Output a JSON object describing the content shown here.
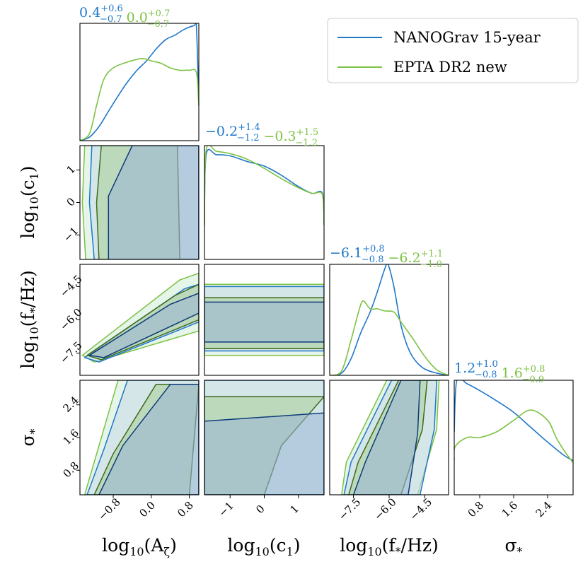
{
  "chart_data": {
    "type": "corner",
    "parameters": [
      "log10(A_zeta)",
      "log10(c1)",
      "log10(f_*/Hz)",
      "sigma_*"
    ],
    "axis_labels": {
      "p0": {
        "base": "log",
        "sub": "10",
        "arg": "(A",
        "argsub": "ζ",
        "close": ")"
      },
      "p1": {
        "base": "log",
        "sub": "10",
        "arg": "(c",
        "argsub": "1",
        "close": ")"
      },
      "p2": {
        "base": "log",
        "sub": "10",
        "arg": "(f",
        "argsub": "*",
        "close": "/Hz)"
      },
      "p3": {
        "base": "σ",
        "sub": "*",
        "arg": "",
        "argsub": "",
        "close": ""
      }
    },
    "ranges": {
      "p0": [
        -1.5,
        1.0
      ],
      "p1": [
        -1.75,
        1.75
      ],
      "p2": [
        -8.5,
        -3.5
      ],
      "p3": [
        0.2,
        3.0
      ]
    },
    "ticks": {
      "p0": [
        {
          "v": -0.8,
          "label": "−0.8"
        },
        {
          "v": 0.0,
          "label": "0.0"
        },
        {
          "v": 0.8,
          "label": "0.8"
        }
      ],
      "p1": [
        {
          "v": -1,
          "label": "−1"
        },
        {
          "v": 0,
          "label": "0"
        },
        {
          "v": 1,
          "label": "1"
        }
      ],
      "p2": [
        {
          "v": -7.5,
          "label": "−7.5"
        },
        {
          "v": -6.0,
          "label": "−6.0"
        },
        {
          "v": -4.5,
          "label": "−4.5"
        }
      ],
      "p3": [
        {
          "v": 0.8,
          "label": "0.8"
        },
        {
          "v": 1.6,
          "label": "1.6"
        },
        {
          "v": 2.4,
          "label": "2.4"
        }
      ]
    },
    "series": [
      {
        "name": "NANOGrav 15-year",
        "color": "#1f77c9",
        "fill_inner": "#9ab5d6",
        "fill_outer": "#c6d8ea",
        "stats": [
          {
            "median": "0.4",
            "plus": "+0.6",
            "minus": "−0.7"
          },
          {
            "median": "−0.2",
            "plus": "+1.4",
            "minus": "−1.2"
          },
          {
            "median": "−6.1",
            "plus": "+0.8",
            "minus": "−0.8"
          },
          {
            "median": "1.2",
            "plus": "+1.0",
            "minus": "−0.8"
          }
        ],
        "marginals": {
          "p0": [
            [
              -1.5,
              0.0
            ],
            [
              -1.3,
              0.03
            ],
            [
              -1.1,
              0.12
            ],
            [
              -0.9,
              0.25
            ],
            [
              -0.7,
              0.38
            ],
            [
              -0.5,
              0.5
            ],
            [
              -0.3,
              0.6
            ],
            [
              -0.1,
              0.68
            ],
            [
              0.1,
              0.78
            ],
            [
              0.3,
              0.86
            ],
            [
              0.5,
              0.9
            ],
            [
              0.7,
              0.95
            ],
            [
              0.9,
              0.98
            ],
            [
              0.95,
              0.97
            ],
            [
              1.0,
              0.3
            ]
          ],
          "p1": [
            [
              -1.75,
              0.3
            ],
            [
              -1.7,
              0.92
            ],
            [
              -1.4,
              0.92
            ],
            [
              -1.0,
              0.91
            ],
            [
              -0.5,
              0.86
            ],
            [
              0.0,
              0.82
            ],
            [
              0.5,
              0.74
            ],
            [
              1.0,
              0.64
            ],
            [
              1.4,
              0.58
            ],
            [
              1.7,
              0.58
            ],
            [
              1.75,
              0.3
            ]
          ],
          "p2": [
            [
              -8.5,
              0.0
            ],
            [
              -8.0,
              0.02
            ],
            [
              -7.6,
              0.15
            ],
            [
              -7.2,
              0.38
            ],
            [
              -6.8,
              0.57
            ],
            [
              -6.5,
              0.75
            ],
            [
              -6.2,
              0.95
            ],
            [
              -6.05,
              1.0
            ],
            [
              -5.8,
              0.8
            ],
            [
              -5.5,
              0.45
            ],
            [
              -5.1,
              0.2
            ],
            [
              -4.6,
              0.07
            ],
            [
              -4.0,
              0.02
            ],
            [
              -3.5,
              0.0
            ]
          ],
          "p3": [
            [
              0.2,
              0.55
            ],
            [
              0.26,
              1.0
            ],
            [
              0.5,
              0.97
            ],
            [
              0.8,
              0.91
            ],
            [
              1.2,
              0.82
            ],
            [
              1.6,
              0.72
            ],
            [
              2.0,
              0.59
            ],
            [
              2.4,
              0.46
            ],
            [
              2.8,
              0.34
            ],
            [
              3.0,
              0.3
            ]
          ]
        }
      },
      {
        "name": "EPTA DR2 new",
        "color": "#7dc242",
        "fill_inner": "#a8cf95",
        "fill_outer": "#d2ecd7",
        "stats": [
          {
            "median": "0.0",
            "plus": "+0.7",
            "minus": "−0.7"
          },
          {
            "median": "−0.3",
            "plus": "+1.5",
            "minus": "−1.2"
          },
          {
            "median": "−6.2",
            "plus": "+1.1",
            "minus": "−1.0"
          },
          {
            "median": "1.6",
            "plus": "+0.8",
            "minus": "−0.9"
          }
        ],
        "marginals": {
          "p0": [
            [
              -1.5,
              0.0
            ],
            [
              -1.3,
              0.06
            ],
            [
              -1.15,
              0.3
            ],
            [
              -1.0,
              0.52
            ],
            [
              -0.8,
              0.62
            ],
            [
              -0.5,
              0.67
            ],
            [
              -0.2,
              0.7
            ],
            [
              0.0,
              0.68
            ],
            [
              0.2,
              0.66
            ],
            [
              0.4,
              0.62
            ],
            [
              0.6,
              0.6
            ],
            [
              0.8,
              0.6
            ],
            [
              0.95,
              0.58
            ],
            [
              1.0,
              0.3
            ]
          ],
          "p1": [
            [
              -1.75,
              0.3
            ],
            [
              -1.7,
              0.96
            ],
            [
              -1.4,
              0.95
            ],
            [
              -1.0,
              0.93
            ],
            [
              -0.5,
              0.88
            ],
            [
              0.0,
              0.8
            ],
            [
              0.5,
              0.71
            ],
            [
              1.0,
              0.63
            ],
            [
              1.4,
              0.58
            ],
            [
              1.7,
              0.57
            ],
            [
              1.75,
              0.3
            ]
          ],
          "p2": [
            [
              -8.5,
              0.0
            ],
            [
              -8.0,
              0.04
            ],
            [
              -7.6,
              0.32
            ],
            [
              -7.3,
              0.56
            ],
            [
              -7.1,
              0.67
            ],
            [
              -6.8,
              0.6
            ],
            [
              -6.5,
              0.6
            ],
            [
              -6.2,
              0.58
            ],
            [
              -5.8,
              0.57
            ],
            [
              -5.5,
              0.48
            ],
            [
              -5.0,
              0.33
            ],
            [
              -4.5,
              0.17
            ],
            [
              -4.0,
              0.05
            ],
            [
              -3.5,
              0.0
            ]
          ],
          "p3": [
            [
              0.2,
              0.3
            ],
            [
              0.22,
              0.42
            ],
            [
              0.5,
              0.5
            ],
            [
              0.8,
              0.5
            ],
            [
              1.2,
              0.55
            ],
            [
              1.6,
              0.65
            ],
            [
              2.0,
              0.74
            ],
            [
              2.4,
              0.65
            ],
            [
              2.6,
              0.5
            ],
            [
              2.8,
              0.38
            ],
            [
              3.0,
              0.28
            ]
          ]
        }
      }
    ],
    "legend": {
      "position": "top-right"
    }
  }
}
